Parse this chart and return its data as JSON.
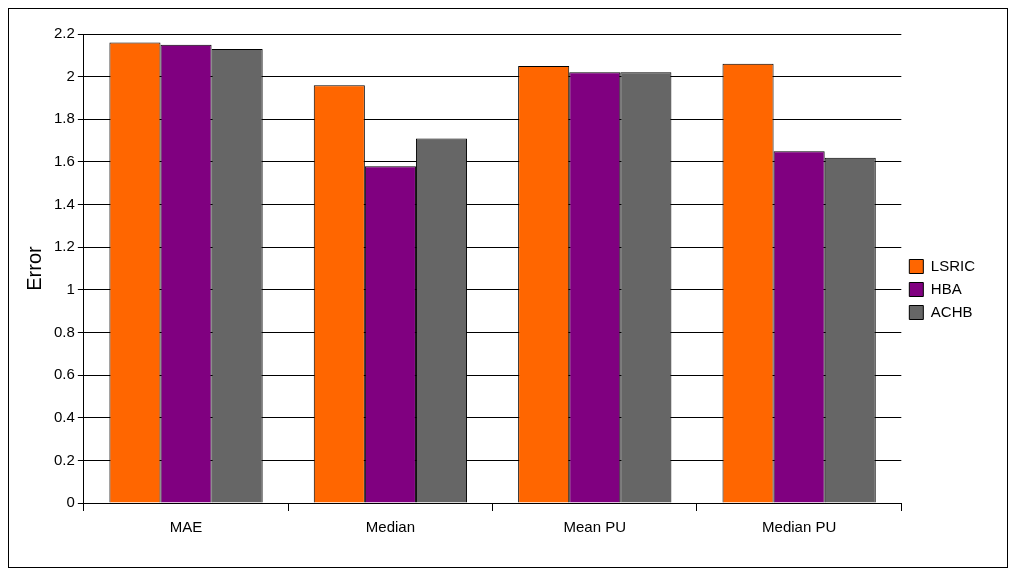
{
  "chart_data": {
    "type": "bar",
    "ylabel": "Error",
    "categories": [
      "MAE",
      "Median",
      "Mean PU",
      "Median PU"
    ],
    "series": [
      {
        "name": "LSRIC",
        "color": "#ff6600",
        "values": [
          2.16,
          1.96,
          2.05,
          2.06
        ]
      },
      {
        "name": "HBA",
        "color": "#800080",
        "values": [
          2.15,
          1.58,
          2.02,
          1.65
        ]
      },
      {
        "name": "ACHB",
        "color": "#666666",
        "values": [
          2.13,
          1.71,
          2.02,
          1.62
        ]
      }
    ],
    "ylim": [
      0,
      2.2
    ],
    "yticks": [
      0,
      0.2,
      0.4,
      0.6,
      0.8,
      1,
      1.2,
      1.4,
      1.6,
      1.8,
      2,
      2.2
    ],
    "grid": "y",
    "legend": "right"
  }
}
